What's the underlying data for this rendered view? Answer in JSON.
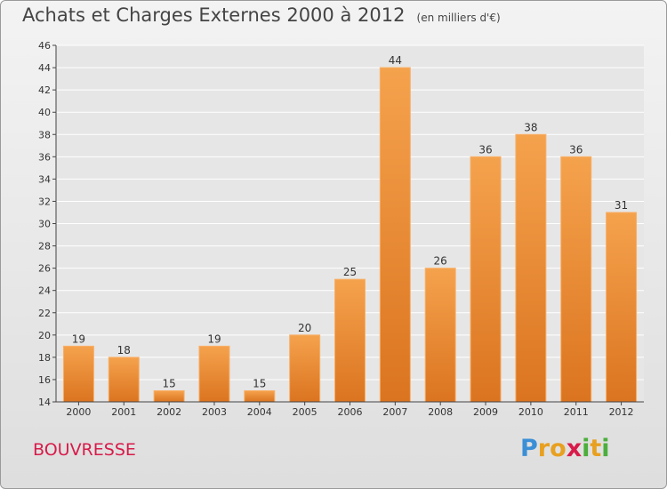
{
  "title": "Achats et Charges Externes 2000 à 2012",
  "unit_note": "(en milliers d'€)",
  "commune": "BOUVRESSE",
  "logo": {
    "text": "Proxiti",
    "letters": [
      "P",
      "r",
      "o",
      "x",
      "i",
      "t",
      "i"
    ],
    "colors": [
      "#3a8fd6",
      "#e8a020",
      "#e8a020",
      "#d81b4a",
      "#4cae3c",
      "#e8a020",
      "#4cae3c"
    ]
  },
  "colors": {
    "bar_top": "#f5a24d",
    "bar_bottom": "#db7420",
    "bar_edge": "#f8b068",
    "axis": "#444444",
    "grid": "#ffffff",
    "commune": "#d81b4a"
  },
  "chart_data": {
    "type": "bar",
    "categories": [
      "2000",
      "2001",
      "2002",
      "2003",
      "2004",
      "2005",
      "2006",
      "2007",
      "2008",
      "2009",
      "2010",
      "2011",
      "2012"
    ],
    "values": [
      19,
      18,
      15,
      19,
      15,
      20,
      25,
      44,
      26,
      36,
      38,
      36,
      31
    ],
    "ylim": [
      14,
      46
    ],
    "yticks": [
      14,
      16,
      18,
      20,
      22,
      24,
      26,
      28,
      30,
      32,
      34,
      36,
      38,
      40,
      42,
      44,
      46
    ],
    "grid": true,
    "data_labels": true
  }
}
